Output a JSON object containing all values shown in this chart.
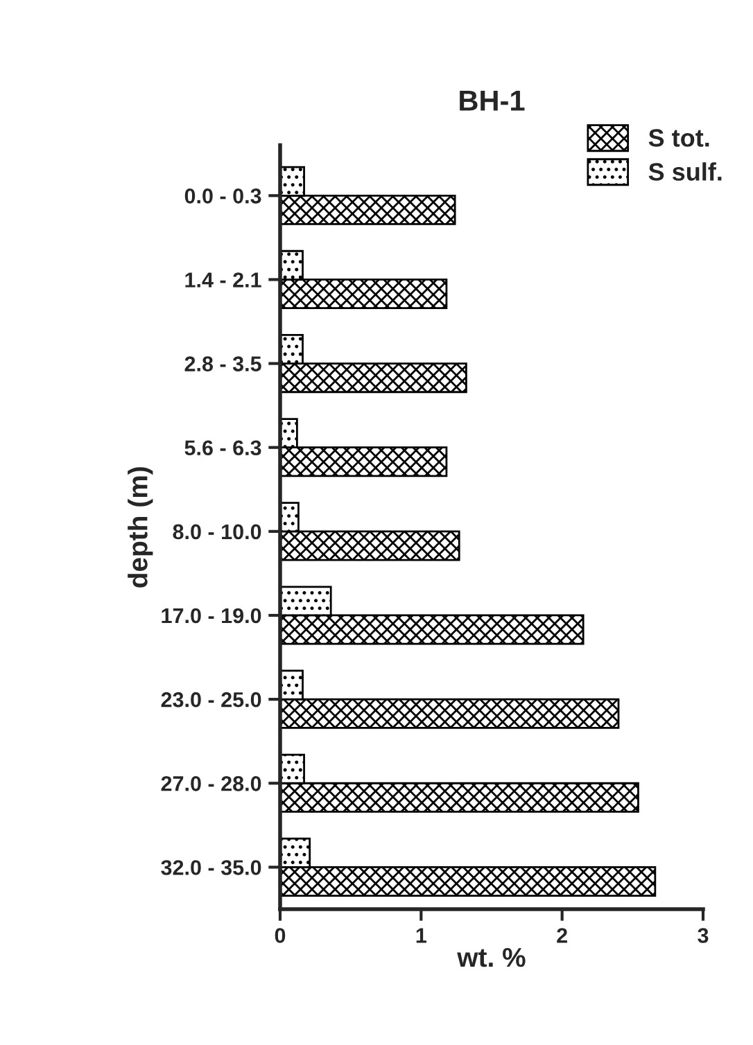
{
  "chart_data": {
    "type": "bar",
    "orientation": "horizontal",
    "title": "BH-1",
    "xlabel": "wt. %",
    "ylabel": "depth (m)",
    "categories": [
      "0.0 - 0.3",
      "1.4 - 2.1",
      "2.8 - 3.5",
      "5.6 - 6.3",
      "8.0 - 10.0",
      "17.0 - 19.0",
      "23.0 - 25.0",
      "27.0 - 28.0",
      "32.0 - 35.0"
    ],
    "series": [
      {
        "name": "S tot.",
        "color": "#000000",
        "values": [
          1.24,
          1.18,
          1.32,
          1.18,
          1.27,
          2.15,
          2.4,
          2.54,
          2.66
        ]
      },
      {
        "name": "S sulf.",
        "color": "#000000",
        "values": [
          0.17,
          0.16,
          0.16,
          0.12,
          0.13,
          0.36,
          0.16,
          0.17,
          0.21
        ]
      }
    ],
    "xlim": [
      0,
      3
    ],
    "xticks": [
      0,
      1,
      2,
      3
    ],
    "grid": false,
    "legend": "top right"
  }
}
